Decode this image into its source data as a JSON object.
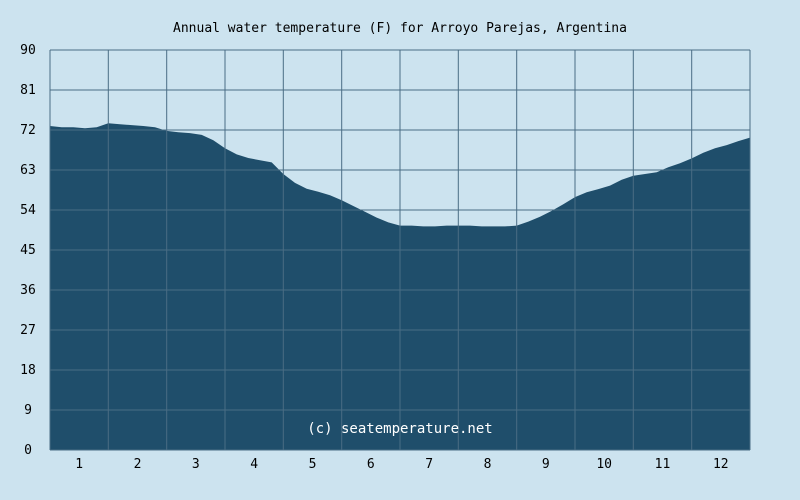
{
  "chart_data": {
    "type": "area",
    "title": "Annual water temperature (F) for Arroyo Parejas, Argentina",
    "xlabel": "",
    "ylabel": "",
    "x_tick_labels": [
      "1",
      "2",
      "3",
      "4",
      "5",
      "6",
      "7",
      "8",
      "9",
      "10",
      "11",
      "12"
    ],
    "y_tick_labels": [
      "0",
      "9",
      "18",
      "27",
      "36",
      "45",
      "54",
      "63",
      "72",
      "81",
      "90"
    ],
    "ylim": [
      0,
      90
    ],
    "xlim": [
      0.5,
      12.5
    ],
    "grid": true,
    "watermark": "(c) seatemperature.net",
    "colors": {
      "background": "#cce3ef",
      "fill": "#1f4e6b",
      "grid": "#4a6d84"
    },
    "series": [
      {
        "x": [
          0.5,
          0.7,
          0.9,
          1.1,
          1.3,
          1.5,
          1.7,
          1.9,
          2.1,
          2.3,
          2.5,
          2.7,
          2.9,
          3.1,
          3.3,
          3.5,
          3.7,
          3.9,
          4.1,
          4.3,
          4.5,
          4.7,
          4.9,
          5.1,
          5.3,
          5.5,
          5.7,
          5.9,
          6.1,
          6.3,
          6.5,
          6.7,
          6.9,
          7.1,
          7.3,
          7.5,
          7.7,
          7.9,
          8.1,
          8.3,
          8.5,
          8.7,
          8.9,
          9.1,
          9.3,
          9.5,
          9.7,
          9.9,
          10.1,
          10.3,
          10.5,
          10.7,
          10.9,
          11.1,
          11.3,
          11.5,
          11.7,
          11.9,
          12.1,
          12.3,
          12.5
        ],
        "values": [
          72.9,
          72.6,
          72.6,
          72.4,
          72.6,
          73.5,
          73.3,
          73.1,
          72.9,
          72.6,
          71.8,
          71.5,
          71.3,
          70.9,
          69.7,
          67.9,
          66.5,
          65.7,
          65.2,
          64.7,
          62.1,
          60.1,
          58.8,
          58.1,
          57.3,
          56.2,
          54.9,
          53.6,
          52.3,
          51.2,
          50.5,
          50.5,
          50.3,
          50.3,
          50.5,
          50.5,
          50.5,
          50.3,
          50.3,
          50.3,
          50.5,
          51.4,
          52.5,
          53.8,
          55.3,
          56.9,
          58.0,
          58.7,
          59.5,
          60.8,
          61.7,
          62.1,
          62.5,
          63.6,
          64.5,
          65.6,
          66.9,
          67.9,
          68.6,
          69.5,
          70.3
        ]
      }
    ]
  }
}
